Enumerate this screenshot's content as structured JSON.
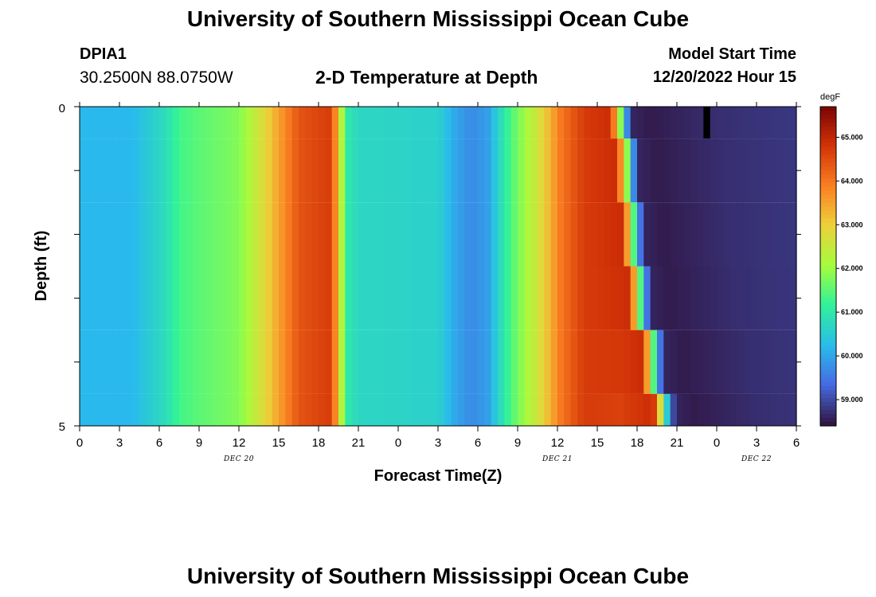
{
  "header": {
    "title": "University of Southern Mississippi Ocean Cube",
    "station": "DPIA1",
    "coords": "30.2500N  88.0750W",
    "subtitle": "2-D Temperature at Depth",
    "model_start_label": "Model Start Time",
    "model_start_value": "12/20/2022 Hour 15"
  },
  "footer": {
    "title": "University of Southern Mississippi Ocean Cube"
  },
  "chart_data": {
    "type": "heatmap",
    "title": "2-D Temperature at Depth",
    "xlabel": "Forecast Time(Z)",
    "ylabel": "Depth (ft)",
    "x_tick_labels": [
      "0",
      "3",
      "6",
      "9",
      "12",
      "15",
      "18",
      "21",
      "0",
      "3",
      "6",
      "9",
      "12",
      "15",
      "18",
      "21",
      "0",
      "3",
      "6"
    ],
    "date_labels": [
      {
        "label": "DEC 20",
        "hour": 12
      },
      {
        "label": "DEC 21",
        "hour": 36
      },
      {
        "label": "DEC 22",
        "hour": 51
      }
    ],
    "x_range_hours": [
      0,
      54
    ],
    "y_tick_labels": [
      "0",
      "5"
    ],
    "ylim": [
      0,
      5
    ],
    "depth_levels_ft": [
      0,
      0.5,
      1.5,
      2.5,
      3.5,
      4.5,
      5
    ],
    "colorbar": {
      "unit": "degF",
      "min": 58.4,
      "max": 65.7,
      "tick_labels": [
        "65.000",
        "64.000",
        "63.000",
        "62.000",
        "61.000",
        "60.000",
        "59.000"
      ],
      "colormap": "turbo"
    },
    "surface_temperature_profile": [
      {
        "hour": 0,
        "degF": 60.2
      },
      {
        "hour": 4,
        "degF": 60.2
      },
      {
        "hour": 6.5,
        "degF": 60.8
      },
      {
        "hour": 7.5,
        "degF": 61.3
      },
      {
        "hour": 9,
        "degF": 61.5
      },
      {
        "hour": 12,
        "degF": 61.8
      },
      {
        "hour": 13,
        "degF": 62.3
      },
      {
        "hour": 14.5,
        "degF": 63.2
      },
      {
        "hour": 16.5,
        "degF": 64.4
      },
      {
        "hour": 19,
        "degF": 64.7
      },
      {
        "hour": 19.7,
        "degF": 62.3
      },
      {
        "hour": 20.2,
        "degF": 61.0
      },
      {
        "hour": 21,
        "degF": 60.7
      },
      {
        "hour": 27,
        "degF": 60.6
      },
      {
        "hour": 28.3,
        "degF": 60.0
      },
      {
        "hour": 29.5,
        "degF": 59.7
      },
      {
        "hour": 30.7,
        "degF": 59.9
      },
      {
        "hour": 31.5,
        "degF": 60.6
      },
      {
        "hour": 32.5,
        "degF": 61.4
      },
      {
        "hour": 34.5,
        "degF": 62.6
      },
      {
        "hour": 36.3,
        "degF": 64.0
      },
      {
        "hour": 38,
        "degF": 64.7
      },
      {
        "hour": 40,
        "degF": 64.9
      },
      {
        "hour": 40.5,
        "degF": 63.0
      },
      {
        "hour": 40.9,
        "degF": 61.2
      },
      {
        "hour": 41.2,
        "degF": 59.8
      },
      {
        "hour": 41.7,
        "degF": 58.6
      },
      {
        "hour": 43,
        "degF": 58.5
      },
      {
        "hour": 48,
        "degF": 58.7
      },
      {
        "hour": 54,
        "degF": 58.8
      }
    ],
    "front_passage_hour_by_depth": [
      {
        "depth_ft": 0.25,
        "hour": 41.2
      },
      {
        "depth_ft": 1.0,
        "hour": 41.7
      },
      {
        "depth_ft": 2.0,
        "hour": 42.1
      },
      {
        "depth_ft": 3.0,
        "hour": 42.6
      },
      {
        "depth_ft": 4.0,
        "hour": 43.6
      },
      {
        "depth_ft": 4.75,
        "hour": 44.4
      }
    ],
    "missing_data": {
      "hour_start": 47.2,
      "hour_end": 47.6,
      "depth_top_ft": 0,
      "depth_bottom_ft": 0.5
    }
  }
}
